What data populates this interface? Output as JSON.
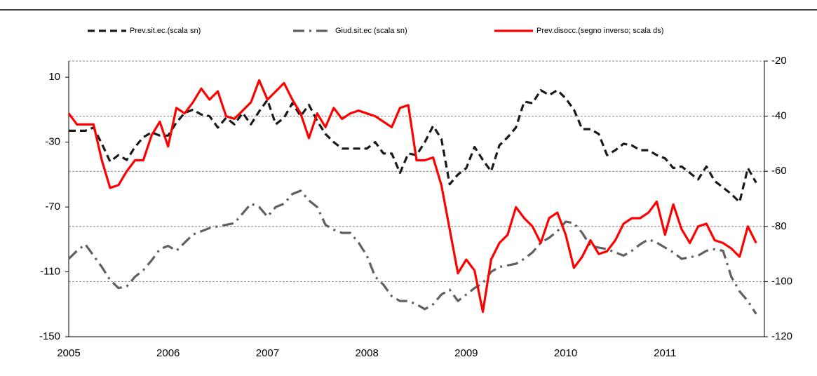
{
  "chart_data": {
    "type": "line",
    "categories": [
      "2005",
      null,
      null,
      null,
      null,
      null,
      null,
      null,
      null,
      null,
      null,
      null,
      "2006",
      null,
      null,
      null,
      null,
      null,
      null,
      null,
      null,
      null,
      null,
      null,
      "2007",
      null,
      null,
      null,
      null,
      null,
      null,
      null,
      null,
      null,
      null,
      null,
      "2008",
      null,
      null,
      null,
      null,
      null,
      null,
      null,
      null,
      null,
      null,
      null,
      "2009",
      null,
      null,
      null,
      null,
      null,
      null,
      null,
      null,
      null,
      null,
      null,
      "2010",
      null,
      null,
      null,
      null,
      null,
      null,
      null,
      null,
      null,
      null,
      null,
      "2011",
      null,
      null,
      null,
      null,
      null,
      null,
      null,
      null,
      null,
      null,
      null
    ],
    "series": [
      {
        "name": "Prev.sit.ec.(scala sn)",
        "color": "#1a1a1a",
        "dash": "dashed",
        "values": [
          -23,
          -23,
          -23,
          -21,
          -31,
          -42,
          -38,
          -41,
          -33,
          -27,
          -24,
          -26,
          -26,
          -18,
          -12,
          -10,
          -13,
          -14,
          -21,
          -15,
          -19,
          -12,
          -19,
          -11,
          -4,
          -19,
          -15,
          -6,
          -14,
          -7,
          -17,
          -25,
          -30,
          -34,
          -34,
          -34,
          -34,
          -30,
          -37,
          -37,
          -49,
          -37,
          -38,
          -30,
          -20,
          -28,
          -56,
          -50,
          -46,
          -33,
          -41,
          -48,
          -32,
          -27,
          -21,
          -5,
          -6,
          2,
          -1,
          2,
          -3,
          -10,
          -22,
          -22,
          -25,
          -38,
          -35,
          -31,
          -32,
          -35,
          -35,
          -38,
          -40,
          -46,
          -45,
          -49,
          -53,
          -45,
          -54,
          -58,
          -62,
          -67,
          -46,
          -55
        ]
      },
      {
        "name": "Giud.sit.ec (scala sn)",
        "color": "#606060",
        "dash": "dashdot",
        "values": [
          -102,
          -97,
          -93,
          -100,
          -107,
          -115,
          -120,
          -119,
          -113,
          -109,
          -103,
          -96,
          -94,
          -97,
          -92,
          -87,
          -85,
          -83,
          -82,
          -81,
          -80,
          -74,
          -68,
          -70,
          -76,
          -70,
          -68,
          -62,
          -60,
          -66,
          -70,
          -81,
          -84,
          -86,
          -86,
          -92,
          -100,
          -113,
          -118,
          -125,
          -128,
          -128,
          -130,
          -133,
          -130,
          -124,
          -121,
          -128,
          -124,
          -120,
          -117,
          -110,
          -107,
          -106,
          -105,
          -102,
          -98,
          -92,
          -89,
          -85,
          -79,
          -80,
          -86,
          -94,
          -95,
          -96,
          -98,
          -100,
          -97,
          -93,
          -90,
          -92,
          -95,
          -98,
          -102,
          -101,
          -100,
          -97,
          -96,
          -97,
          -113,
          -122,
          -128,
          -136
        ]
      },
      {
        "name": "Prev.disocc.(segno inverso; scala ds)",
        "color": "#ff0000",
        "dash": "solid",
        "axis": "y2",
        "values": [
          -39,
          -43,
          -43,
          -43,
          -56,
          -66,
          -65,
          -60,
          -56,
          -56,
          -47,
          -42,
          -51,
          -37,
          -39,
          -35,
          -30,
          -34,
          -31,
          -40,
          -41,
          -38,
          -35,
          -27,
          -34,
          -31,
          -28,
          -34,
          -39,
          -48,
          -39,
          -44,
          -37,
          -41,
          -39,
          -38,
          -39,
          -40,
          -42,
          -44,
          -37,
          -36,
          -56,
          -56,
          -55,
          -65,
          -81,
          -97,
          -92,
          -96,
          -111,
          -92,
          -86,
          -83,
          -73,
          -77,
          -80,
          -86,
          -77,
          -75,
          -83,
          -95,
          -91,
          -85,
          -90,
          -89,
          -85,
          -79,
          -77,
          -77,
          -75,
          -71,
          -83,
          -72,
          -81,
          -86,
          -80,
          -79,
          -85,
          -86,
          -88,
          -91,
          -80,
          -86
        ]
      }
    ],
    "ylim": [
      -150,
      20
    ],
    "yticks": [
      -150,
      -110,
      -70,
      -30,
      10
    ],
    "y2lim": [
      -120,
      -20
    ],
    "y2ticks": [
      -120,
      -100,
      -80,
      -60,
      -40,
      -20
    ],
    "grid": true
  }
}
